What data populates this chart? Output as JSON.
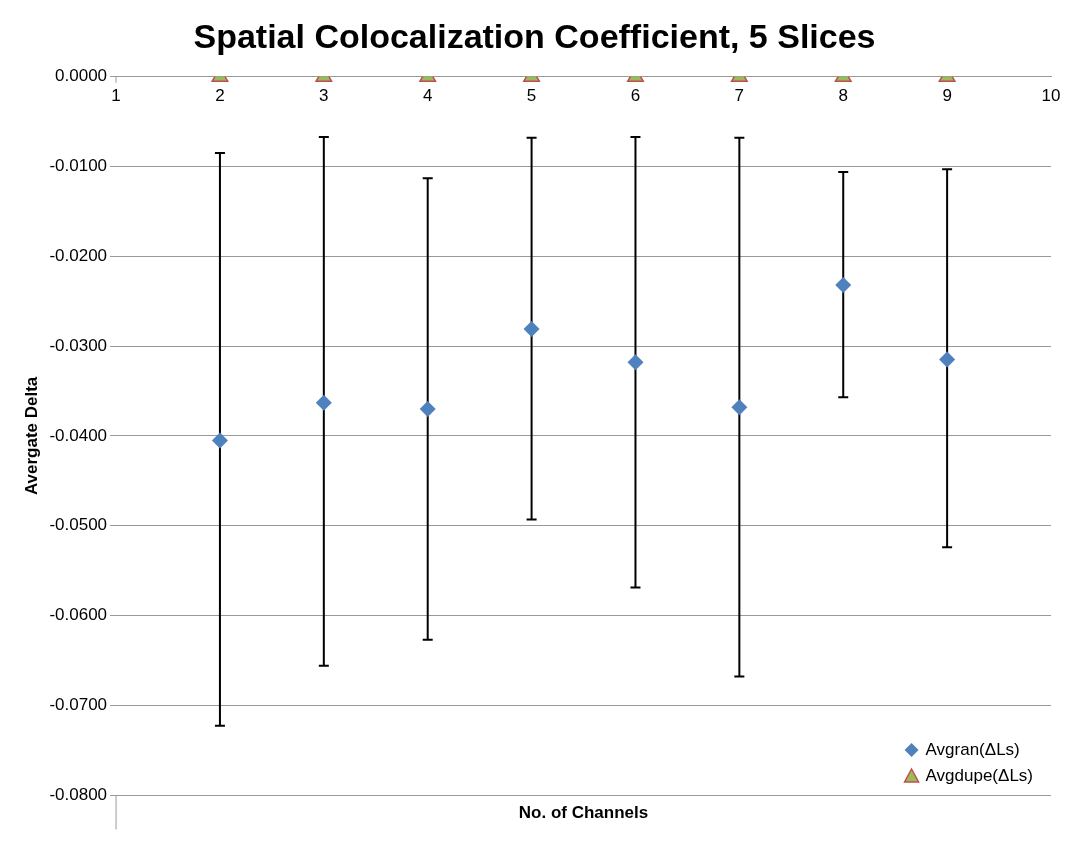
{
  "chart_data": {
    "type": "scatter",
    "title": "Spatial Colocalization Coefficient, 5 Slices",
    "xlabel": "No. of Channels",
    "ylabel": "Avergate Delta",
    "x": [
      2,
      3,
      4,
      5,
      6,
      7,
      8,
      9
    ],
    "series": [
      {
        "name": "Avgran(ΔLs)",
        "color": "#4f81bd",
        "marker": "diamond",
        "values": [
          -0.0405,
          -0.0363,
          -0.037,
          -0.0281,
          -0.0318,
          -0.0368,
          -0.0232,
          -0.0315
        ],
        "errors": [
          [
            -0.0723,
            -0.0085
          ],
          [
            -0.0656,
            -0.0067
          ],
          [
            -0.0627,
            -0.0113
          ],
          [
            -0.0493,
            -0.0068
          ],
          [
            -0.0569,
            -0.0067
          ],
          [
            -0.0668,
            -0.0068
          ],
          [
            -0.0357,
            -0.0106
          ],
          [
            -0.0524,
            -0.0103
          ]
        ]
      },
      {
        "name": "Avgdupe(ΔLs)",
        "color": "#9bbb59",
        "marker": "triangle",
        "values": [
          0,
          0,
          0,
          0,
          0,
          0,
          0,
          0
        ]
      }
    ],
    "xlim": [
      1,
      10
    ],
    "xticks": [
      1,
      2,
      3,
      4,
      5,
      6,
      7,
      8,
      9,
      10
    ],
    "ylim": [
      -0.08,
      0
    ],
    "yticks": [
      {
        "value": 0,
        "label": "0.0000"
      },
      {
        "value": -0.01,
        "label": "-0.0100"
      },
      {
        "value": -0.02,
        "label": "-0.0200"
      },
      {
        "value": -0.03,
        "label": "-0.0300"
      },
      {
        "value": -0.04,
        "label": "-0.0400"
      },
      {
        "value": -0.05,
        "label": "-0.0500"
      },
      {
        "value": -0.06,
        "label": "-0.0600"
      },
      {
        "value": -0.07,
        "label": "-0.0700"
      },
      {
        "value": -0.08,
        "label": "-0.0800"
      }
    ],
    "grid": "y",
    "legend": "bottom right"
  }
}
